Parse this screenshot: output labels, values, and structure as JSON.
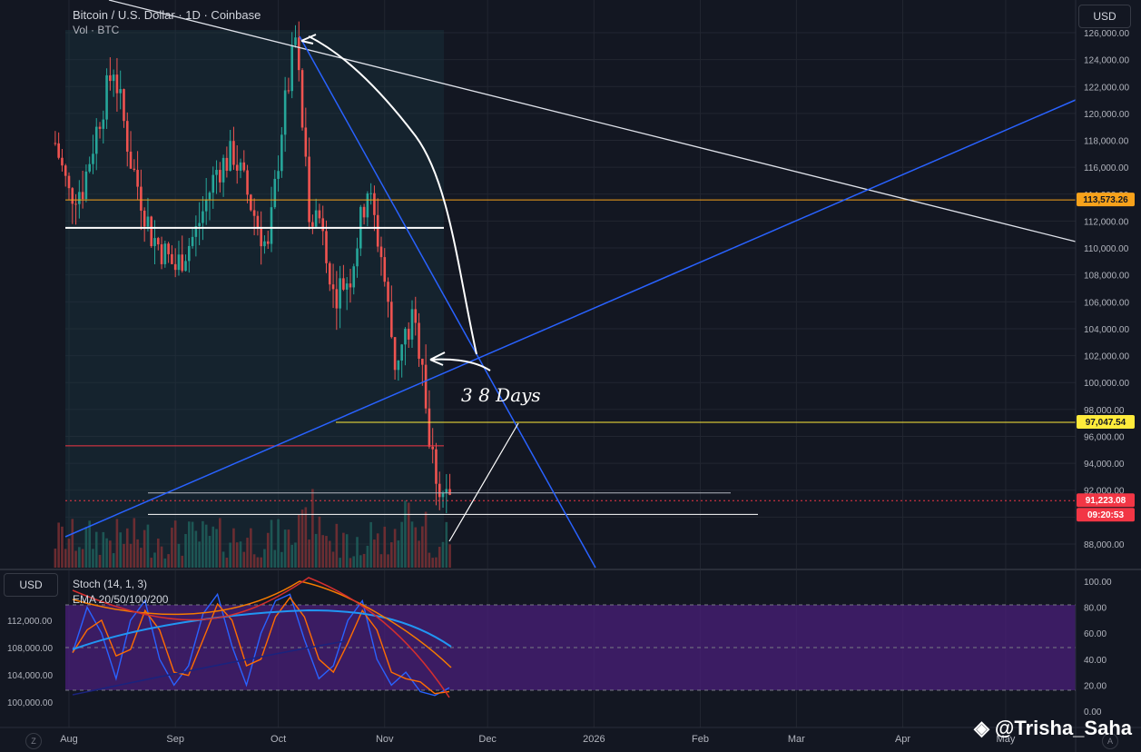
{
  "header": {
    "title": "Bitcoin / U.S. Dollar · 1D · Coinbase",
    "volume_label": "Vol · BTC",
    "currency_button": "USD"
  },
  "indicators": {
    "stoch_label": "Stoch (14, 1, 3)",
    "ema_label": "EMA 20/50/100/200",
    "currency_button": "USD"
  },
  "price_axis": {
    "ticks": [
      "126,000.00",
      "124,000.00",
      "122,000.00",
      "120,000.00",
      "118,000.00",
      "116,000.00",
      "114,000.00",
      "112,000.00",
      "110,000.00",
      "108,000.00",
      "106,000.00",
      "104,000.00",
      "102,000.00",
      "100,000.00",
      "98,000.00",
      "96,000.00",
      "94,000.00",
      "92,000.00",
      "88,000.00"
    ],
    "badges": [
      {
        "label": "113,573.26",
        "color": "#f7a21b",
        "text_color": "#131722"
      },
      {
        "label": "97,047.54",
        "color": "#ffeb3b",
        "text_color": "#131722"
      },
      {
        "label": "91,223.08",
        "color": "#f23645",
        "text_color": "#ffffff"
      },
      {
        "label": "09:20:53",
        "color": "#f23645",
        "text_color": "#ffffff"
      }
    ]
  },
  "stoch_axis": {
    "ticks": [
      "100.00",
      "80.00",
      "60.00",
      "40.00",
      "20.00",
      "0.00"
    ]
  },
  "left_axis": {
    "ticks": [
      "112,000.00",
      "108,000.00",
      "104,000.00",
      "100,000.00"
    ]
  },
  "time_axis": {
    "ticks": [
      "Aug",
      "Sep",
      "Oct",
      "Nov",
      "Dec",
      "2026",
      "Feb",
      "Mar",
      "Apr",
      "May"
    ]
  },
  "annotations": {
    "handwriting": "3 8  Days"
  },
  "chart_data": {
    "type": "candlestick",
    "symbol": "Bitcoin / U.S. Dollar",
    "interval": "1D",
    "exchange": "Coinbase",
    "ylim": [
      87000,
      127000
    ],
    "last_price": 91223.08,
    "horizontal_levels": [
      {
        "value": 113573.26,
        "color": "#f7a21b"
      },
      {
        "value": 97047.54,
        "color": "#ffeb3b"
      },
      {
        "value": 111500,
        "color": "#ffffff"
      },
      {
        "value": 95300,
        "color": "#f23645"
      },
      {
        "value": 91800,
        "color": "#b2b5be"
      },
      {
        "value": 90200,
        "color": "#ffffff"
      }
    ],
    "price_path": [
      {
        "date": "2025-07-28",
        "close": 117800
      },
      {
        "date": "2025-08-01",
        "close": 114000
      },
      {
        "date": "2025-08-05",
        "close": 114500
      },
      {
        "date": "2025-08-10",
        "close": 119800
      },
      {
        "date": "2025-08-14",
        "close": 123500
      },
      {
        "date": "2025-08-19",
        "close": 116500
      },
      {
        "date": "2025-08-25",
        "close": 111000
      },
      {
        "date": "2025-09-01",
        "close": 108500
      },
      {
        "date": "2025-09-07",
        "close": 111200
      },
      {
        "date": "2025-09-13",
        "close": 115800
      },
      {
        "date": "2025-09-18",
        "close": 117000
      },
      {
        "date": "2025-09-24",
        "close": 112500
      },
      {
        "date": "2025-09-28",
        "close": 109700
      },
      {
        "date": "2025-10-02",
        "close": 119000
      },
      {
        "date": "2025-10-06",
        "close": 125500
      },
      {
        "date": "2025-10-10",
        "close": 113000
      },
      {
        "date": "2025-10-14",
        "close": 112000
      },
      {
        "date": "2025-10-17",
        "close": 106500
      },
      {
        "date": "2025-10-22",
        "close": 108000
      },
      {
        "date": "2025-10-27",
        "close": 114500
      },
      {
        "date": "2025-10-31",
        "close": 109500
      },
      {
        "date": "2025-11-04",
        "close": 101500
      },
      {
        "date": "2025-11-09",
        "close": 104500
      },
      {
        "date": "2025-11-12",
        "close": 102000
      },
      {
        "date": "2025-11-14",
        "close": 95500
      },
      {
        "date": "2025-11-17",
        "close": 92200
      },
      {
        "date": "2025-11-20",
        "close": 91223
      }
    ],
    "stoch": {
      "ylim": [
        0,
        100
      ],
      "overbought": 80,
      "oversold": 20,
      "k": [
        45,
        80,
        60,
        25,
        70,
        85,
        40,
        20,
        35,
        75,
        90,
        50,
        20,
        60,
        85,
        90,
        55,
        25,
        35,
        70,
        85,
        40,
        20,
        30,
        15,
        12,
        18
      ]
    }
  }
}
